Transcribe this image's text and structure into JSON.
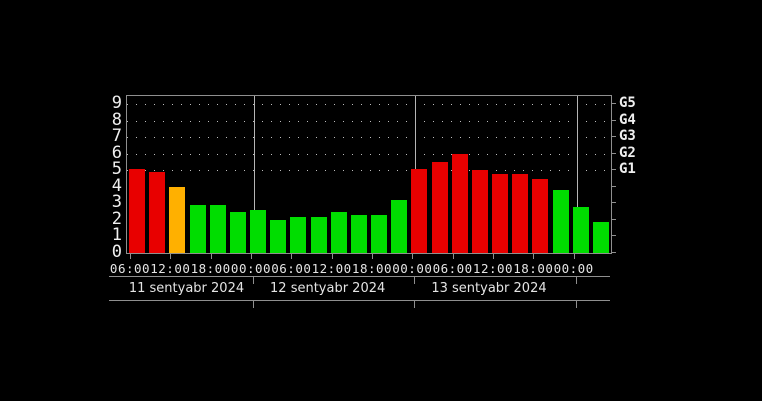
{
  "colors": {
    "background": "#000000",
    "axis": "#8f8f8f",
    "grid_dots": "#bdbdbd",
    "text": "#e8e8e8",
    "bar_red": "#e80000",
    "bar_orange": "#ffb000",
    "bar_green": "#00dd00"
  },
  "chart_data": {
    "type": "bar",
    "description": "Geomagnetic Kp-index bar chart, 3-hour intervals, 11-14 sentyabr 2024",
    "y_axis": {
      "min": 0,
      "max": 9,
      "tick_labels": [
        "9",
        "8",
        "7",
        "6",
        "5",
        "4",
        "3",
        "2",
        "1",
        "0"
      ]
    },
    "right_axis": {
      "tick_labels": [
        "G5",
        "G4",
        "G3",
        "G2",
        "G1"
      ],
      "at_values": [
        9,
        8,
        7,
        6,
        5
      ]
    },
    "grid_levels": [
      5,
      6,
      7,
      8,
      9
    ],
    "grid": "dotted horizontal lines at Kp 5-9 only",
    "legend": "none",
    "x_tick_labels": [
      "06:00",
      "12:00",
      "18:00",
      "00:00",
      "06:00",
      "12:00",
      "18:00",
      "00:00",
      "06:00",
      "12:00",
      "18:00",
      "00:00"
    ],
    "date_labels": [
      "11 sentyabr 2024",
      "12 sentyabr 2024",
      "13 sentyabr 2024"
    ],
    "day_boundary_bar_indices": [
      6,
      14,
      22
    ],
    "bars": [
      {
        "time": "06:00",
        "value": 5.1,
        "color": "red"
      },
      {
        "time": "09:00",
        "value": 4.9,
        "color": "red"
      },
      {
        "time": "12:00",
        "value": 4.0,
        "color": "orange"
      },
      {
        "time": "15:00",
        "value": 2.9,
        "color": "green"
      },
      {
        "time": "18:00",
        "value": 2.9,
        "color": "green"
      },
      {
        "time": "21:00",
        "value": 2.5,
        "color": "green"
      },
      {
        "time": "00:00",
        "value": 2.6,
        "color": "green"
      },
      {
        "time": "03:00",
        "value": 2.0,
        "color": "green"
      },
      {
        "time": "06:00",
        "value": 2.2,
        "color": "green"
      },
      {
        "time": "09:00",
        "value": 2.2,
        "color": "green"
      },
      {
        "time": "12:00",
        "value": 2.5,
        "color": "green"
      },
      {
        "time": "15:00",
        "value": 2.3,
        "color": "green"
      },
      {
        "time": "18:00",
        "value": 2.3,
        "color": "green"
      },
      {
        "time": "21:00",
        "value": 3.2,
        "color": "green"
      },
      {
        "time": "00:00",
        "value": 5.1,
        "color": "red"
      },
      {
        "time": "03:00",
        "value": 5.5,
        "color": "red"
      },
      {
        "time": "06:00",
        "value": 6.0,
        "color": "red"
      },
      {
        "time": "09:00",
        "value": 5.0,
        "color": "red"
      },
      {
        "time": "12:00",
        "value": 4.8,
        "color": "red"
      },
      {
        "time": "15:00",
        "value": 4.8,
        "color": "red"
      },
      {
        "time": "18:00",
        "value": 4.5,
        "color": "red"
      },
      {
        "time": "21:00",
        "value": 3.8,
        "color": "green"
      },
      {
        "time": "00:00",
        "value": 2.8,
        "color": "green"
      },
      {
        "time": "03:00",
        "value": 1.9,
        "color": "green"
      }
    ]
  }
}
